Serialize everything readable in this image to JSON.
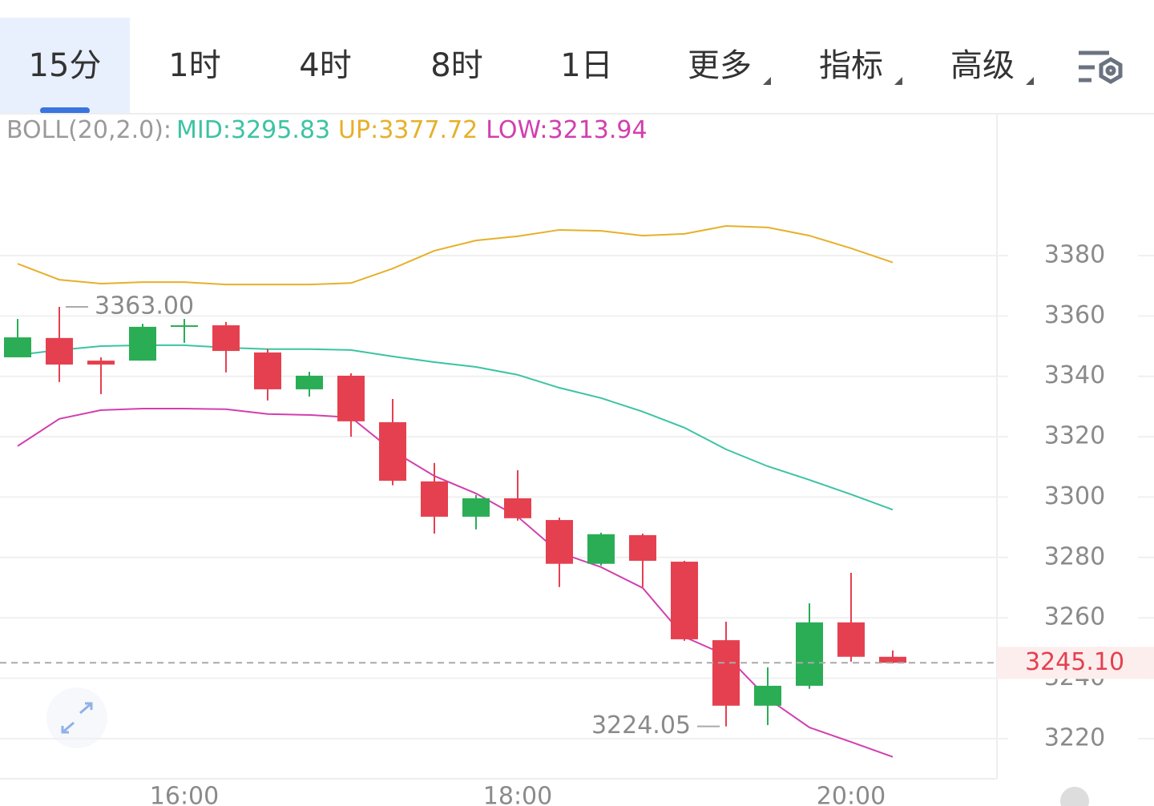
{
  "tabs": {
    "items": [
      "15分",
      "1时",
      "4时",
      "8时",
      "1日",
      "更多",
      "指标",
      "高级"
    ],
    "active": 0
  },
  "chart_data": {
    "type": "candlestick",
    "categories": [
      null,
      null,
      null,
      null,
      "16:00",
      null,
      null,
      null,
      null,
      null,
      null,
      null,
      "18:00",
      null,
      null,
      null,
      null,
      null,
      null,
      null,
      "20:00",
      null
    ],
    "open": [
      3346.3,
      3352.7,
      3345.2,
      3345.2,
      3356.4,
      3356.9,
      3347.9,
      3335.7,
      3340.2,
      3324.8,
      3305.2,
      3293.5,
      3299.6,
      3292.4,
      3277.9,
      3287.4,
      3278.6,
      3252.6,
      3230.9,
      3237.5,
      3258.5,
      3247.1
    ],
    "high": [
      3359.0,
      3363.0,
      3346.3,
      3357.4,
      3359.0,
      3358.0,
      3349.0,
      3341.5,
      3341.0,
      3332.5,
      3311.3,
      3300.7,
      3308.9,
      3293.2,
      3288.2,
      3287.9,
      3278.9,
      3258.7,
      3243.6,
      3264.8,
      3274.9,
      3249.2
    ],
    "low": [
      3346.3,
      3338.1,
      3334.1,
      3345.2,
      3351.1,
      3341.3,
      3332.0,
      3333.3,
      3320.0,
      3303.9,
      3287.9,
      3289.3,
      3292.2,
      3270.2,
      3277.3,
      3270.2,
      3252.4,
      3224.05,
      3224.5,
      3236.5,
      3245.5,
      3244.9
    ],
    "close": [
      3352.9,
      3343.9,
      3343.9,
      3356.4,
      3356.9,
      3348.4,
      3335.7,
      3340.2,
      3325.1,
      3305.4,
      3293.5,
      3299.6,
      3293.0,
      3277.9,
      3287.7,
      3278.9,
      3252.9,
      3230.9,
      3237.5,
      3258.5,
      3247.1,
      3245.1
    ],
    "up_color": "#2aad55",
    "down_color": "#e5404f",
    "indicator": {
      "name": "BOLL(20,2.0):",
      "series": [
        {
          "name": "MID:3295.83",
          "color": "#3cc3a3",
          "values": [
            3347.1,
            3348.7,
            3350.0,
            3350.3,
            3350.3,
            3349.5,
            3349.0,
            3349.0,
            3348.7,
            3346.6,
            3344.7,
            3343.1,
            3340.5,
            3336.2,
            3332.8,
            3328.3,
            3323.0,
            3315.8,
            3310.2,
            3305.7,
            3300.9,
            3295.83
          ]
        },
        {
          "name": "UP:3377.72",
          "color": "#e6b02a",
          "values": [
            3377.3,
            3372.0,
            3370.7,
            3371.2,
            3371.2,
            3370.4,
            3370.4,
            3370.4,
            3370.9,
            3375.7,
            3381.6,
            3385.0,
            3386.4,
            3388.5,
            3388.2,
            3386.6,
            3387.2,
            3389.8,
            3389.3,
            3386.6,
            3382.4,
            3377.72
          ]
        },
        {
          "name": "LOW:3213.94",
          "color": "#d23fae",
          "values": [
            3316.9,
            3325.9,
            3328.8,
            3329.3,
            3329.3,
            3329.1,
            3327.5,
            3327.2,
            3326.4,
            3315.3,
            3307.0,
            3301.2,
            3293.5,
            3281.6,
            3276.8,
            3269.9,
            3253.7,
            3247.6,
            3233.3,
            3223.7,
            3218.9,
            3213.94
          ]
        }
      ]
    },
    "annotations": [
      {
        "label": "3363.00",
        "value": 3363.0
      },
      {
        "label": "3224.05",
        "value": 3224.05
      }
    ],
    "last_price": {
      "label": "3245.10",
      "value": 3245.1
    },
    "ylim": [
      3206.7,
      3426.7
    ],
    "yticks": [
      3220,
      3240,
      3260,
      3280,
      3300,
      3320,
      3340,
      3360,
      3380
    ],
    "grid": true
  }
}
